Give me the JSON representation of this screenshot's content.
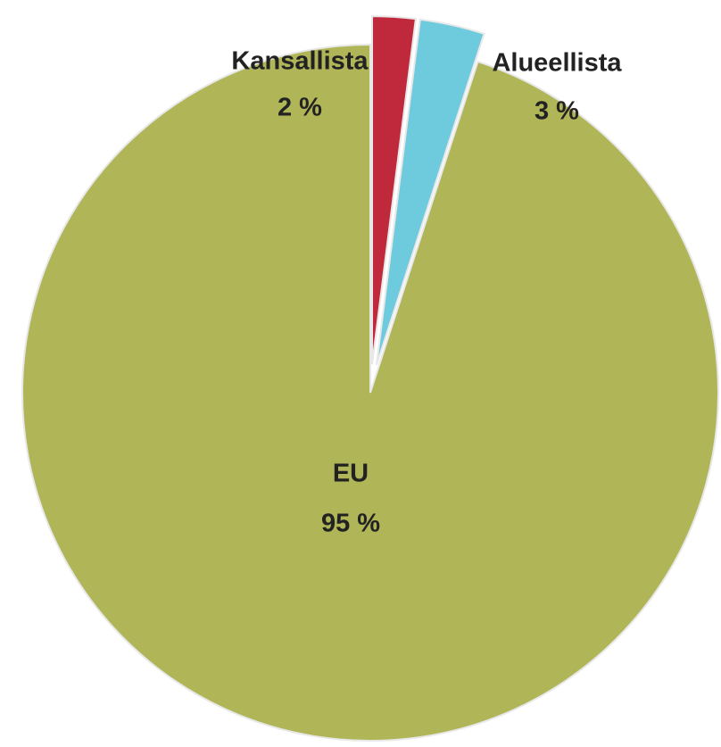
{
  "chart_data": {
    "type": "pie",
    "categories": [
      "Kansallista",
      "Alueellista",
      "EU"
    ],
    "values": [
      2,
      3,
      95
    ],
    "value_labels": [
      "2 %",
      "3 %",
      "95 %"
    ],
    "colors": [
      "#c0283c",
      "#6ecadd",
      "#b0b558"
    ]
  }
}
